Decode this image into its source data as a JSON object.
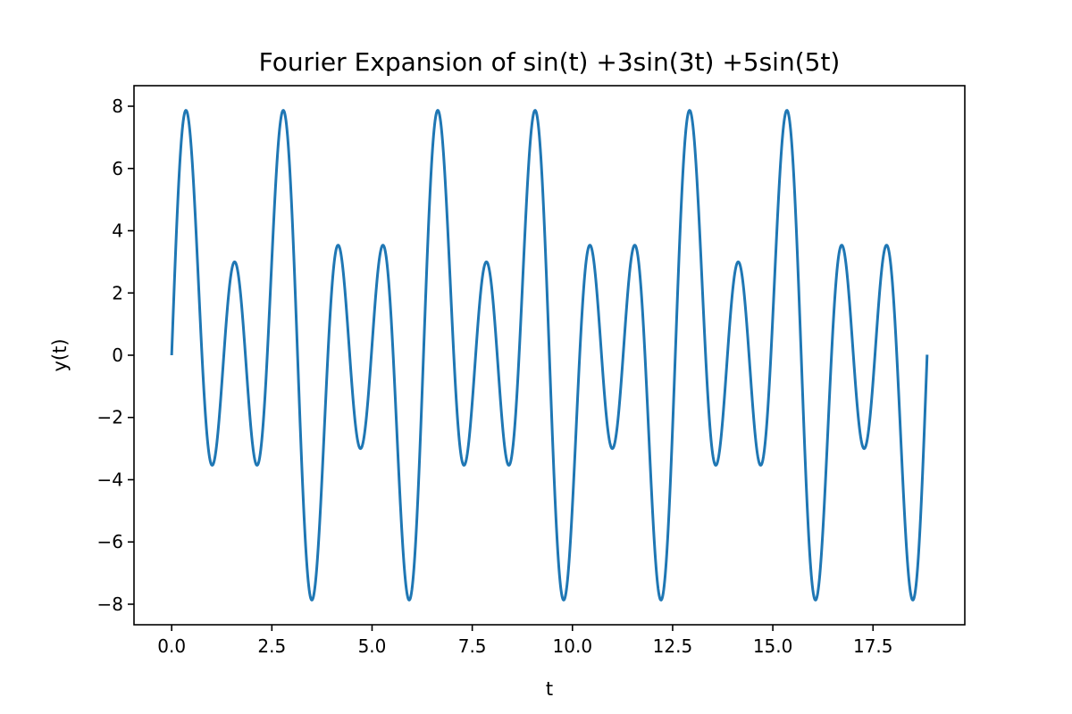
{
  "chart_data": {
    "type": "line",
    "title": "Fourier Expansion of sin(t) +3sin(3t) +5sin(5t)",
    "xlabel": "t",
    "ylabel": "y(t)",
    "xlim": [
      -0.94,
      19.79
    ],
    "ylim": [
      -8.66,
      8.66
    ],
    "x_ticks": [
      0.0,
      2.5,
      5.0,
      7.5,
      10.0,
      12.5,
      15.0,
      17.5
    ],
    "x_tick_labels": [
      "0.0",
      "2.5",
      "5.0",
      "7.5",
      "10.0",
      "12.5",
      "15.0",
      "17.5"
    ],
    "y_ticks": [
      8,
      6,
      4,
      2,
      0,
      -2,
      -4,
      -6,
      -8
    ],
    "y_tick_labels": [
      "8",
      "6",
      "4",
      "2",
      "0",
      "−2",
      "−4",
      "−6",
      "−8"
    ],
    "grid": false,
    "legend": "none",
    "line_color": "#1f77b4",
    "series": [
      {
        "function": "sin(t) + 3*sin(3*t) + 5*sin(5*t)",
        "x_range": [
          0,
          18.85
        ],
        "points": 1500
      }
    ]
  }
}
